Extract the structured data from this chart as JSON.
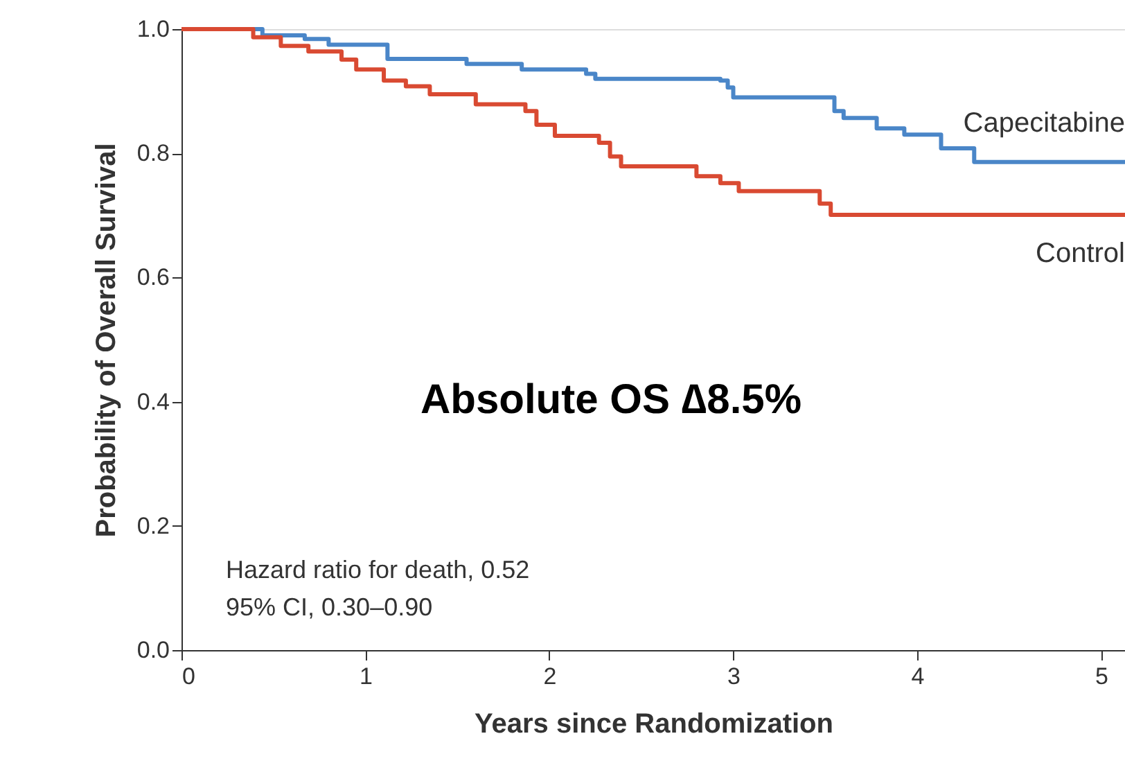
{
  "chart_data": {
    "type": "step",
    "xlabel": "Years since Randomization",
    "ylabel": "Probability of Overall Survival",
    "xlim": [
      0,
      5.13
    ],
    "xticks": [
      {
        "value": 0,
        "label": "0"
      },
      {
        "value": 1,
        "label": "1"
      },
      {
        "value": 2,
        "label": "2"
      },
      {
        "value": 3,
        "label": "3"
      },
      {
        "value": 4,
        "label": "4"
      },
      {
        "value": 5,
        "label": "5"
      }
    ],
    "ylim": [
      0,
      1.0
    ],
    "yticks": [
      {
        "value": 0,
        "label": "0.0"
      },
      {
        "value": 0.2,
        "label": "0.2"
      },
      {
        "value": 0.4,
        "label": "0.4"
      },
      {
        "value": 0.6,
        "label": "0.6"
      },
      {
        "value": 0.8,
        "label": "0.8"
      },
      {
        "value": 1.0,
        "label": "1.0"
      }
    ],
    "grid": false,
    "legend": false,
    "marker": "none",
    "line_style": "solid",
    "series": [
      {
        "name": "Capecitabine",
        "color": "#4a86c8",
        "x": [
          0,
          0.44,
          0.67,
          0.8,
          1.12,
          1.55,
          1.85,
          2.2,
          2.25,
          2.93,
          2.97,
          3.0,
          3.55,
          3.6,
          3.78,
          3.93,
          4.13,
          4.31,
          5.13
        ],
        "values": [
          1.0,
          0.99,
          0.984,
          0.975,
          0.952,
          0.944,
          0.935,
          0.928,
          0.92,
          0.917,
          0.906,
          0.89,
          0.868,
          0.857,
          0.84,
          0.83,
          0.808,
          0.786,
          0.786
        ]
      },
      {
        "name": "Control",
        "color": "#d94a32",
        "x": [
          0,
          0.39,
          0.54,
          0.69,
          0.87,
          0.95,
          1.1,
          1.22,
          1.35,
          1.6,
          1.87,
          1.93,
          2.03,
          2.27,
          2.33,
          2.39,
          2.8,
          2.93,
          3.03,
          3.47,
          3.53,
          5.13
        ],
        "values": [
          1.0,
          0.987,
          0.973,
          0.964,
          0.951,
          0.935,
          0.917,
          0.908,
          0.895,
          0.879,
          0.868,
          0.846,
          0.828,
          0.817,
          0.795,
          0.779,
          0.763,
          0.752,
          0.739,
          0.719,
          0.701,
          0.701
        ]
      }
    ],
    "annotations": [
      "Absolute OS ∆8.5%",
      "Hazard ratio for death, 0.52",
      "95% CI, 0.30–0.90"
    ]
  }
}
